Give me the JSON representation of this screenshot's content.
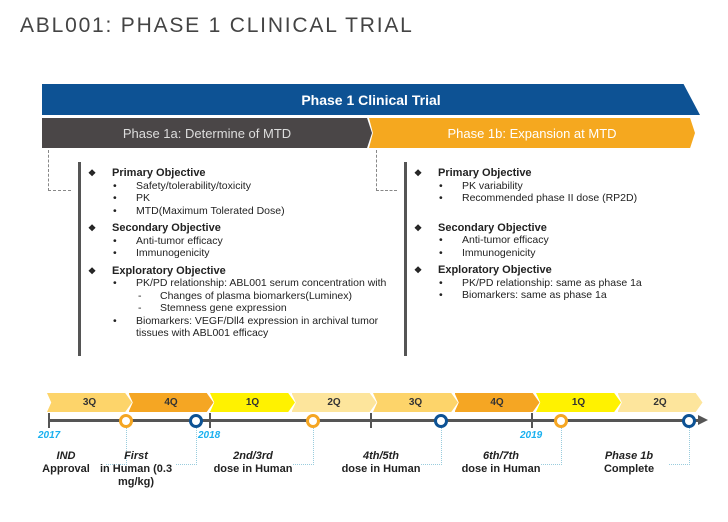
{
  "title": "ABL001: PHASE 1 CLINICAL TRIAL",
  "banner": "Phase 1 Clinical Trial",
  "phase1a": {
    "label": "Phase 1a: Determine of MTD",
    "primary": {
      "title": "Primary Objective",
      "items": [
        "Safety/tolerability/toxicity",
        "PK",
        "MTD(Maximum Tolerated Dose)"
      ]
    },
    "secondary": {
      "title": "Secondary Objective",
      "items": [
        "Anti-tumor efficacy",
        "Immunogenicity"
      ]
    },
    "exploratory": {
      "title": "Exploratory Objective",
      "items": [
        "PK/PD relationship: ABL001 serum concentration with",
        "Biomarkers: VEGF/Dll4 expression in archival tumor tissues with ABL001 efficacy"
      ],
      "subitems": [
        "Changes of plasma biomarkers(Luminex)",
        "Stemness gene expression"
      ]
    }
  },
  "phase1b": {
    "label": "Phase 1b: Expansion at MTD",
    "primary": {
      "title": "Primary Objective",
      "items": [
        "PK variability",
        "Recommended phase II dose (RP2D)"
      ]
    },
    "secondary": {
      "title": "Secondary Objective",
      "items": [
        "Anti-tumor efficacy",
        "Immunogenicity"
      ]
    },
    "exploratory": {
      "title": "Exploratory Objective",
      "items": [
        "PK/PD relationship: same as phase 1a",
        "Biomarkers: same as phase 1a"
      ]
    }
  },
  "timeline": {
    "quarters": [
      "3Q",
      "4Q",
      "1Q",
      "2Q",
      "3Q",
      "4Q",
      "1Q",
      "2Q"
    ],
    "quarter_colors": [
      "#fdd46a",
      "#f5a623",
      "#fff200",
      "#fde59c",
      "#fdd46a",
      "#f5a623",
      "#fff200",
      "#fde59c"
    ],
    "years": [
      "2017",
      "2018",
      "2019"
    ],
    "milestones": [
      {
        "italic": "IND",
        "rest": "Approval",
        "color": "#f5a623"
      },
      {
        "italic": "First",
        "rest": "in Human (0.3 mg/kg)",
        "color": "#0d5294"
      },
      {
        "italic": "2nd/3rd",
        "rest": "dose in Human",
        "color": "#f5a623"
      },
      {
        "italic": "4th/5th",
        "rest": "dose in Human",
        "color": "#0d5294"
      },
      {
        "italic": "6th/7th",
        "rest": "dose in Human",
        "color": "#f5a623"
      },
      {
        "italic": "Phase 1b",
        "rest": "Complete",
        "color": "#0d5294"
      }
    ]
  }
}
